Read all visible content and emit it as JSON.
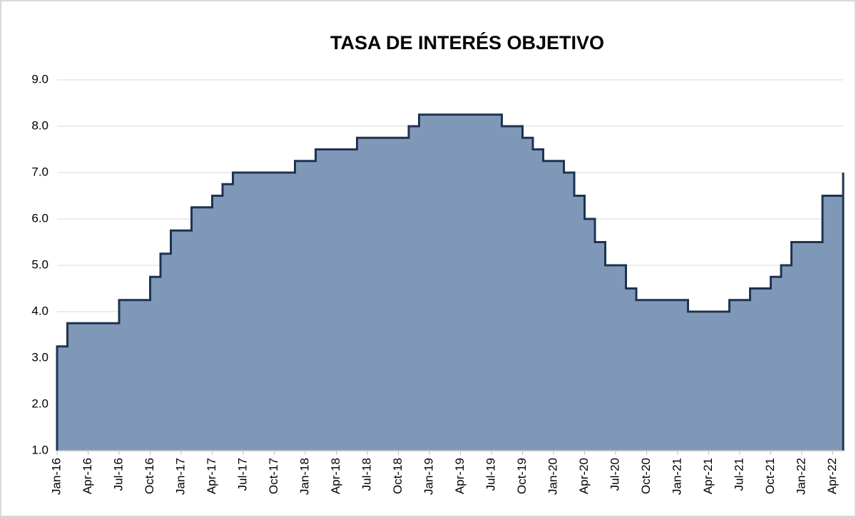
{
  "chart_data": {
    "type": "step-area",
    "title": "TASA DE INTERÉS OBJETIVO",
    "categories": [
      "Jan-16",
      null,
      null,
      "Apr-16",
      null,
      null,
      "Jul-16",
      null,
      null,
      "Oct-16",
      null,
      null,
      "Jan-17",
      null,
      null,
      "Apr-17",
      null,
      null,
      "Jul-17",
      null,
      null,
      "Oct-17",
      null,
      null,
      "Jan-18",
      null,
      null,
      "Apr-18",
      null,
      null,
      "Jul-18",
      null,
      null,
      "Oct-18",
      null,
      null,
      "Jan-19",
      null,
      null,
      "Apr-19",
      null,
      null,
      "Jul-19",
      null,
      null,
      "Oct-19",
      null,
      null,
      "Jan-20",
      null,
      null,
      "Apr-20",
      null,
      null,
      "Jul-20",
      null,
      null,
      "Oct-20",
      null,
      null,
      "Jan-21",
      null,
      null,
      "Apr-21",
      null,
      null,
      "Jul-21",
      null,
      null,
      "Oct-21",
      null,
      null,
      "Jan-22",
      null,
      null,
      "Apr-22",
      null
    ],
    "values": [
      3.25,
      3.75,
      3.75,
      3.75,
      3.75,
      3.75,
      4.25,
      4.25,
      4.25,
      4.75,
      5.25,
      5.75,
      5.75,
      6.25,
      6.25,
      6.5,
      6.75,
      7,
      7,
      7,
      7,
      7,
      7,
      7.25,
      7.25,
      7.5,
      7.5,
      7.5,
      7.5,
      7.75,
      7.75,
      7.75,
      7.75,
      7.75,
      8,
      8.25,
      8.25,
      8.25,
      8.25,
      8.25,
      8.25,
      8.25,
      8.25,
      8,
      8,
      7.75,
      7.5,
      7.25,
      7.25,
      7,
      6.5,
      6,
      5.5,
      5,
      5,
      4.5,
      4.25,
      4.25,
      4.25,
      4.25,
      4.25,
      4,
      4,
      4,
      4,
      4.25,
      4.25,
      4.5,
      4.5,
      4.75,
      5,
      5.5,
      5.5,
      5.5,
      6.5,
      6.5,
      7
    ],
    "color": "#7f98b8",
    "line_color": "#1f3352",
    "ylim": [
      1,
      9
    ],
    "yticks": [
      {
        "value": 1,
        "label": "1.0"
      },
      {
        "value": 2,
        "label": "2.0"
      },
      {
        "value": 3,
        "label": "3.0"
      },
      {
        "value": 4,
        "label": "4.0"
      },
      {
        "value": 5,
        "label": "5.0"
      },
      {
        "value": 6,
        "label": "6.0"
      },
      {
        "value": 7,
        "label": "7.0"
      },
      {
        "value": 8,
        "label": "8.0"
      },
      {
        "value": 9,
        "label": "9.0"
      }
    ],
    "grid": true
  }
}
